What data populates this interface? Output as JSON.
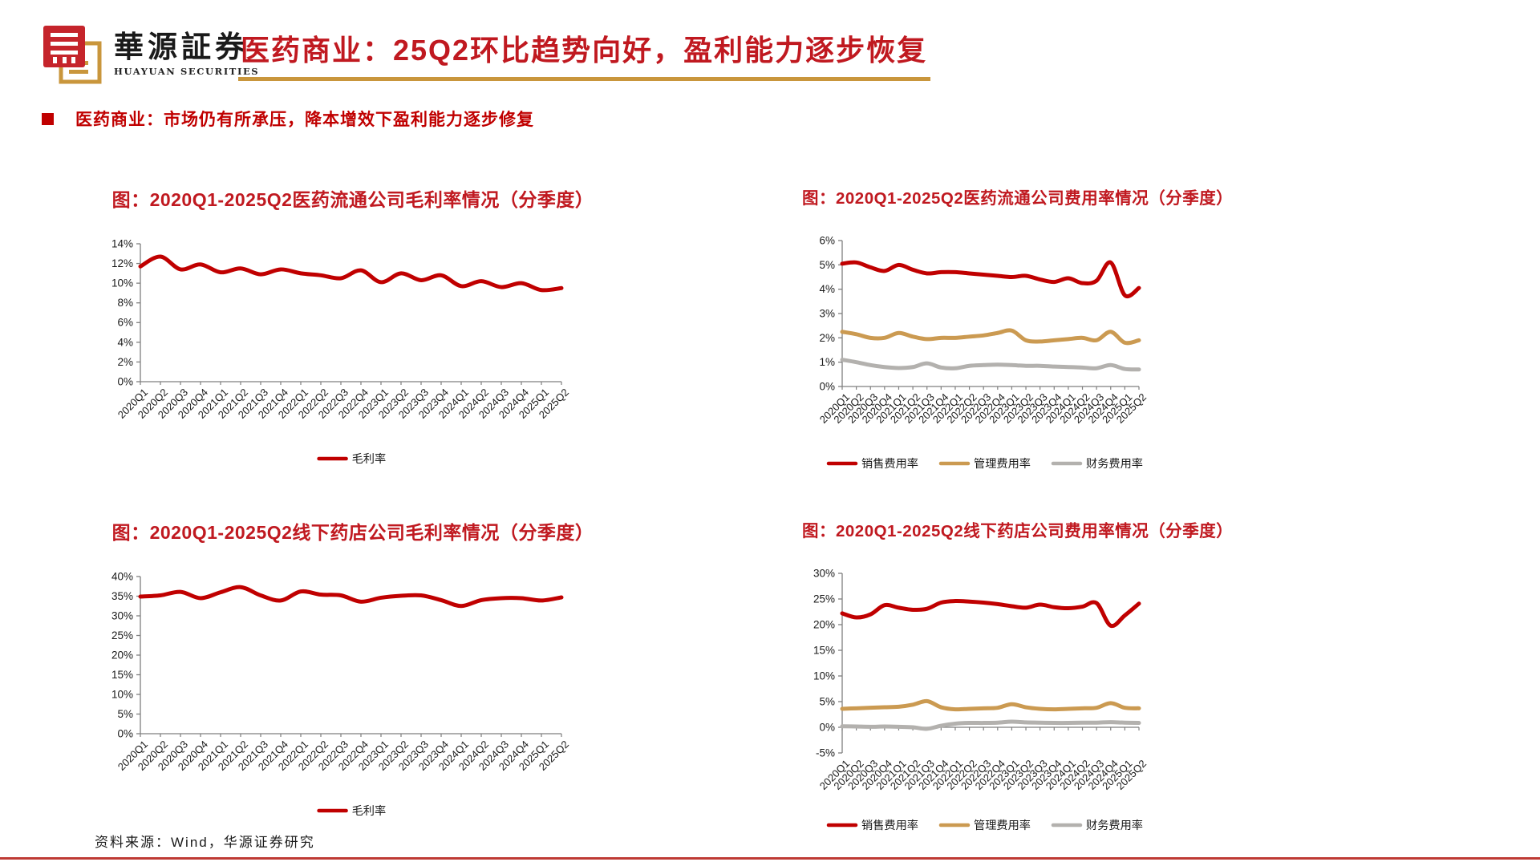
{
  "header": {
    "logo_cn": "華源証券",
    "logo_en": "HUAYUAN SECURITIES",
    "title": "医药商业：25Q2环比趋势向好，盈利能力逐步恢复"
  },
  "bullet": {
    "text": "医药商业：市场仍有所承压，降本增效下盈利能力逐步修复"
  },
  "footer": {
    "source": "资料来源：Wind，华源证券研究"
  },
  "colors": {
    "series_red": "#C00000",
    "series_gold": "#CB9A51",
    "series_gray": "#B3B1AE",
    "title_red": "#C01920",
    "underline_gold": "#C9963C",
    "logo_red": "#C5242B",
    "logo_gold": "#C9963C",
    "bottom_rule_red": "#BE3A34"
  },
  "chart_data": [
    {
      "type": "line",
      "title": "图：2020Q1-2025Q2医药流通公司毛利率情况（分季度）",
      "categories": [
        "2020Q1",
        "2020Q2",
        "2020Q3",
        "2020Q4",
        "2021Q1",
        "2021Q2",
        "2021Q3",
        "2021Q4",
        "2022Q1",
        "2022Q2",
        "2022Q3",
        "2022Q4",
        "2023Q1",
        "2023Q2",
        "2023Q3",
        "2023Q4",
        "2024Q1",
        "2024Q2",
        "2024Q3",
        "2024Q4",
        "2025Q1",
        "2025Q2"
      ],
      "series": [
        {
          "name": "毛利率",
          "color": "#C00000",
          "values": [
            11.7,
            12.7,
            11.4,
            11.9,
            11.1,
            11.5,
            10.9,
            11.4,
            11.0,
            10.8,
            10.5,
            11.3,
            10.1,
            11.0,
            10.3,
            10.8,
            9.7,
            10.2,
            9.6,
            10.0,
            9.3,
            9.5
          ]
        }
      ],
      "xlabel": "",
      "ylabel": "",
      "ylim": [
        0,
        14
      ],
      "ytick_step": 2,
      "ytick_format": "percent",
      "grid": false,
      "legend_position": "bottom"
    },
    {
      "type": "line",
      "title": "图：2020Q1-2025Q2医药流通公司费用率情况（分季度）",
      "categories": [
        "2020Q1",
        "2020Q2",
        "2020Q3",
        "2020Q4",
        "2021Q1",
        "2021Q2",
        "2021Q3",
        "2021Q4",
        "2022Q1",
        "2022Q2",
        "2022Q3",
        "2022Q4",
        "2023Q1",
        "2023Q2",
        "2023Q3",
        "2023Q4",
        "2024Q1",
        "2024Q2",
        "2024Q3",
        "2024Q4",
        "2025Q1",
        "2025Q2"
      ],
      "series": [
        {
          "name": "销售费用率",
          "color": "#C00000",
          "values": [
            5.05,
            5.1,
            4.9,
            4.75,
            5.0,
            4.8,
            4.65,
            4.7,
            4.7,
            4.65,
            4.6,
            4.55,
            4.5,
            4.55,
            4.4,
            4.3,
            4.45,
            4.25,
            4.35,
            5.1,
            3.75,
            4.05
          ]
        },
        {
          "name": "管理费用率",
          "color": "#CB9A51",
          "values": [
            2.25,
            2.15,
            2.0,
            2.0,
            2.2,
            2.05,
            1.95,
            2.0,
            2.0,
            2.05,
            2.1,
            2.2,
            2.3,
            1.9,
            1.85,
            1.9,
            1.95,
            2.0,
            1.9,
            2.25,
            1.8,
            1.9
          ]
        },
        {
          "name": "财务费用率",
          "color": "#B3B1AE",
          "values": [
            1.1,
            1.0,
            0.88,
            0.8,
            0.76,
            0.8,
            0.95,
            0.78,
            0.75,
            0.85,
            0.88,
            0.9,
            0.88,
            0.85,
            0.85,
            0.82,
            0.8,
            0.78,
            0.75,
            0.88,
            0.72,
            0.7
          ]
        }
      ],
      "xlabel": "",
      "ylabel": "",
      "ylim": [
        0,
        6
      ],
      "ytick_step": 1,
      "ytick_format": "percent",
      "grid": false,
      "legend_position": "bottom"
    },
    {
      "type": "line",
      "title": "图：2020Q1-2025Q2线下药店公司毛利率情况（分季度）",
      "categories": [
        "2020Q1",
        "2020Q2",
        "2020Q3",
        "2020Q4",
        "2021Q1",
        "2021Q2",
        "2021Q3",
        "2021Q4",
        "2022Q1",
        "2022Q2",
        "2022Q3",
        "2022Q4",
        "2023Q1",
        "2023Q2",
        "2023Q3",
        "2023Q4",
        "2024Q1",
        "2024Q2",
        "2024Q3",
        "2024Q4",
        "2025Q1",
        "2025Q2"
      ],
      "series": [
        {
          "name": "毛利率",
          "color": "#C00000",
          "values": [
            34.9,
            35.2,
            36.1,
            34.5,
            36.0,
            37.3,
            35.2,
            33.9,
            36.2,
            35.4,
            35.2,
            33.6,
            34.6,
            35.1,
            35.2,
            34.0,
            32.5,
            34.0,
            34.5,
            34.5,
            33.9,
            34.7
          ]
        }
      ],
      "xlabel": "",
      "ylabel": "",
      "ylim": [
        0,
        40
      ],
      "ytick_step": 5,
      "ytick_format": "percent",
      "grid": false,
      "legend_position": "bottom"
    },
    {
      "type": "line",
      "title": "图：2020Q1-2025Q2线下药店公司费用率情况（分季度）",
      "categories": [
        "2020Q1",
        "2020Q2",
        "2020Q3",
        "2020Q4",
        "2021Q1",
        "2021Q2",
        "2021Q3",
        "2021Q4",
        "2022Q1",
        "2022Q2",
        "2022Q3",
        "2022Q4",
        "2023Q1",
        "2023Q2",
        "2023Q3",
        "2023Q4",
        "2024Q1",
        "2024Q2",
        "2024Q3",
        "2024Q4",
        "2025Q1",
        "2025Q2"
      ],
      "series": [
        {
          "name": "销售费用率",
          "color": "#C00000",
          "values": [
            22.2,
            21.4,
            22.0,
            23.8,
            23.3,
            22.9,
            23.1,
            24.3,
            24.6,
            24.5,
            24.3,
            24.0,
            23.6,
            23.3,
            23.9,
            23.4,
            23.2,
            23.5,
            24.2,
            19.8,
            21.8,
            24.1
          ]
        },
        {
          "name": "管理费用率",
          "color": "#CB9A51",
          "values": [
            3.6,
            3.7,
            3.8,
            3.9,
            4.0,
            4.4,
            5.1,
            3.9,
            3.5,
            3.6,
            3.7,
            3.8,
            4.5,
            3.9,
            3.6,
            3.5,
            3.6,
            3.7,
            3.8,
            4.7,
            3.8,
            3.7
          ]
        },
        {
          "name": "财务费用率",
          "color": "#B3B1AE",
          "values": [
            0.2,
            0.15,
            0.1,
            0.15,
            0.1,
            0.0,
            -0.3,
            0.3,
            0.7,
            0.85,
            0.85,
            0.9,
            1.1,
            0.95,
            0.9,
            0.85,
            0.85,
            0.9,
            0.9,
            1.0,
            0.9,
            0.85
          ]
        }
      ],
      "xlabel": "",
      "ylabel": "",
      "ylim": [
        -5,
        30
      ],
      "ytick_step": 5,
      "ytick_format": "percent",
      "grid": false,
      "legend_position": "bottom"
    }
  ]
}
